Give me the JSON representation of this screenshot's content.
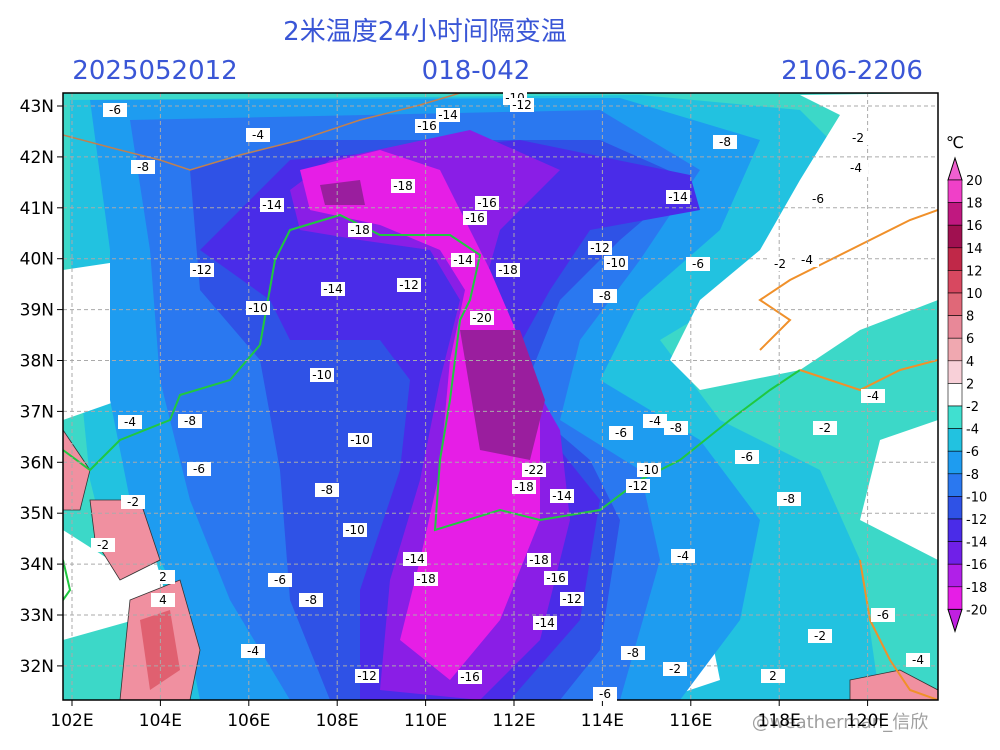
{
  "header": {
    "title": "2米温度24小时间隔变温",
    "left": "2025052012",
    "center": "018-042",
    "right": "2106-2206"
  },
  "axes": {
    "lat": [
      "43N",
      "42N",
      "41N",
      "40N",
      "39N",
      "38N",
      "37N",
      "36N",
      "35N",
      "34N",
      "33N",
      "32N"
    ],
    "lon": [
      "102E",
      "104E",
      "106E",
      "108E",
      "110E",
      "112E",
      "114E",
      "116E",
      "118E",
      "120E"
    ]
  },
  "colorbar": {
    "unit": "℃",
    "labels": [
      20,
      18,
      16,
      14,
      12,
      10,
      8,
      6,
      4,
      2,
      -2,
      -4,
      -6,
      -8,
      -10,
      -12,
      -14,
      -16,
      -18,
      -20
    ]
  },
  "contour_labels": [
    -6,
    -4,
    -8,
    -16,
    -14,
    -10,
    -12,
    -8,
    -2,
    -4,
    -18,
    -16,
    -16,
    -14,
    -14,
    -6,
    -18,
    -14,
    -18,
    -12,
    -10,
    -6,
    -2,
    -4,
    -12,
    -14,
    -12,
    -8,
    -10,
    -20,
    -10,
    -4,
    -8,
    -4,
    -4,
    -8,
    -6,
    -2,
    -10,
    -6,
    -6,
    -10,
    -22,
    -18,
    -12,
    -14,
    -8,
    -2,
    -8,
    -10,
    -2,
    -14,
    -18,
    -4,
    -16,
    -18,
    -6,
    2,
    -8,
    4,
    -12,
    -6,
    -14,
    -2,
    -4,
    -8,
    -2,
    -12,
    -16,
    -6,
    2,
    -4
  ],
  "watermark": "@weatherman_信欣"
}
